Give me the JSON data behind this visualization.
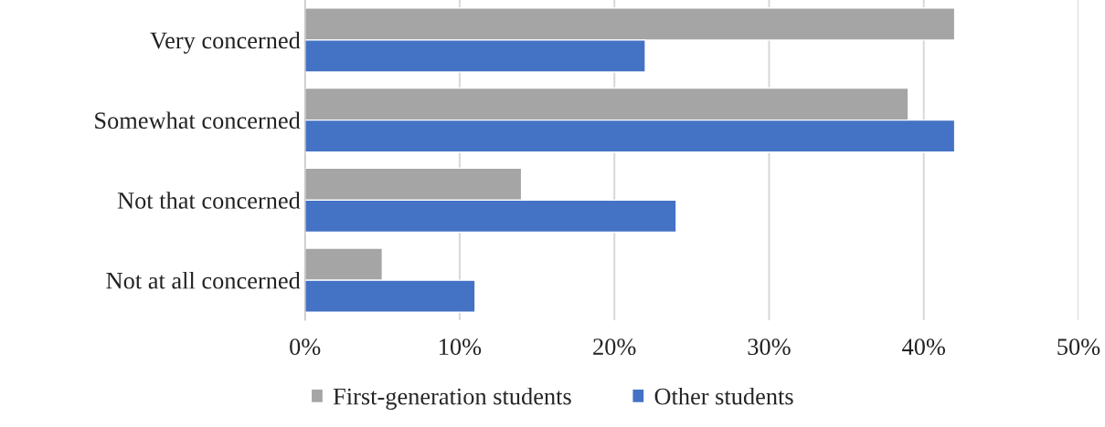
{
  "chart_data": {
    "type": "bar",
    "orientation": "horizontal",
    "categories": [
      "Very concerned",
      "Somewhat concerned",
      "Not that concerned",
      "Not at all concerned"
    ],
    "series": [
      {
        "name": "First-generation students",
        "color": "#a5a5a5",
        "values": [
          42,
          39,
          14,
          5
        ]
      },
      {
        "name": "Other students",
        "color": "#4472c4",
        "values": [
          22,
          42,
          24,
          11
        ]
      }
    ],
    "xlim": [
      0,
      50
    ],
    "xticks": [
      {
        "value": 0,
        "label": "0%"
      },
      {
        "value": 10,
        "label": "10%"
      },
      {
        "value": 20,
        "label": "20%"
      },
      {
        "value": 30,
        "label": "30%"
      },
      {
        "value": 40,
        "label": "40%"
      },
      {
        "value": 50,
        "label": "50%"
      }
    ],
    "grid": "x",
    "legend": "bottom"
  }
}
